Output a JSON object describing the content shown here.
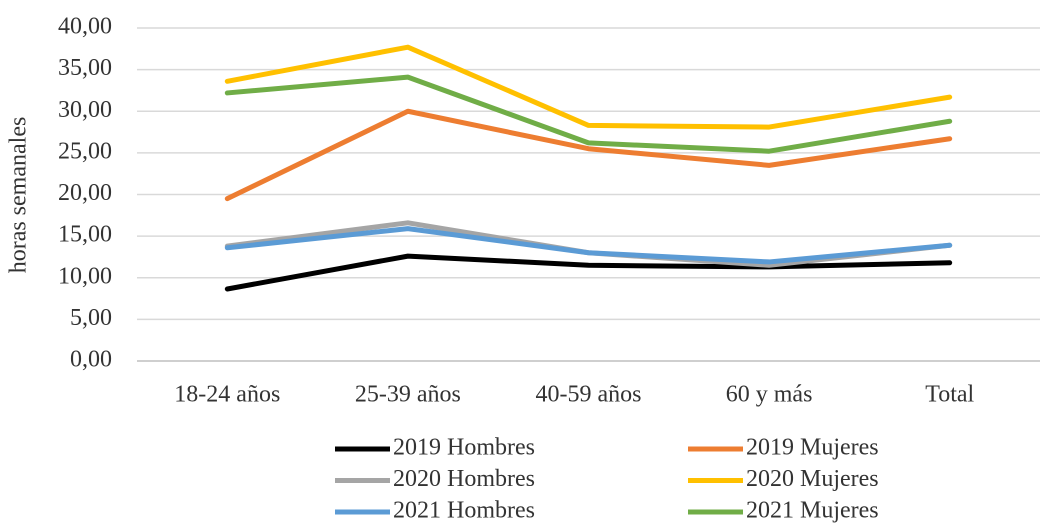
{
  "chart_data": {
    "type": "line",
    "y_label": "horas semanales",
    "categories": [
      "18-24 años",
      "25-39 años",
      "40-59 años",
      "60 y más",
      "Total"
    ],
    "series": [
      {
        "name": "2019 Hombres",
        "color": "#000000",
        "values": [
          8.65,
          12.6,
          11.5,
          11.3,
          11.8
        ]
      },
      {
        "name": "2019 Mujeres",
        "color": "#ed7d31",
        "values": [
          19.5,
          30.0,
          25.5,
          23.5,
          26.7
        ]
      },
      {
        "name": "2020 Hombres",
        "color": "#a5a5a5",
        "values": [
          13.8,
          16.6,
          13.0,
          11.5,
          13.9
        ]
      },
      {
        "name": "2020 Mujeres",
        "color": "#ffc000",
        "values": [
          33.6,
          37.7,
          28.3,
          28.1,
          31.7
        ]
      },
      {
        "name": "2021 Hombres",
        "color": "#5b9bd5",
        "values": [
          13.6,
          15.9,
          13.0,
          11.9,
          13.9
        ]
      },
      {
        "name": "2021 Mujeres",
        "color": "#70ad47",
        "values": [
          32.2,
          34.1,
          26.2,
          25.2,
          28.8
        ]
      }
    ],
    "ylim": [
      0,
      40
    ],
    "yticks": [
      {
        "value": 0,
        "label": "0,00"
      },
      {
        "value": 5,
        "label": "5,00"
      },
      {
        "value": 10,
        "label": "10,00"
      },
      {
        "value": 15,
        "label": "15,00"
      },
      {
        "value": 20,
        "label": "20,00"
      },
      {
        "value": 25,
        "label": "25,00"
      },
      {
        "value": 30,
        "label": "30,00"
      },
      {
        "value": 35,
        "label": "35,00"
      },
      {
        "value": 40,
        "label": "40,00"
      }
    ],
    "grid": true
  }
}
